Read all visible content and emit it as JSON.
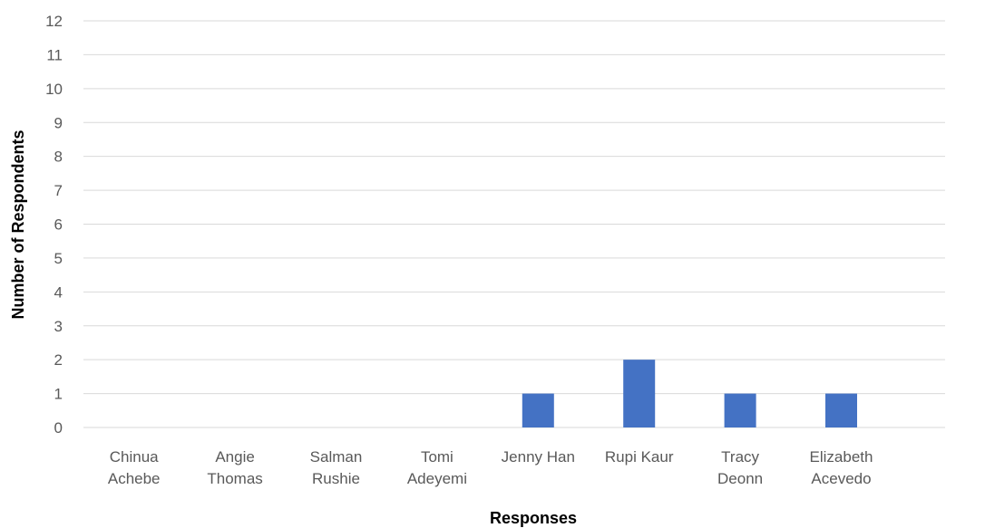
{
  "chart_data": {
    "type": "bar",
    "title": "",
    "xlabel": "Responses",
    "ylabel": "Number of Respondents",
    "categories": [
      [
        "Chinua",
        "Achebe"
      ],
      [
        "Angie",
        "Thomas"
      ],
      [
        "Salman",
        "Rushie"
      ],
      [
        "Tomi",
        "Adeyemi"
      ],
      [
        "Jenny Han"
      ],
      [
        "Rupi Kaur"
      ],
      [
        "Tracy",
        "Deonn"
      ],
      [
        "Elizabeth",
        "Acevedo"
      ]
    ],
    "values": [
      0,
      0,
      0,
      0,
      1,
      2,
      1,
      1
    ],
    "ylim": [
      0,
      12
    ],
    "yticks": [
      0,
      1,
      2,
      3,
      4,
      5,
      6,
      7,
      8,
      9,
      10,
      11,
      12
    ],
    "grid": true,
    "legend": "none",
    "colors": {
      "bar": "#4472C4",
      "grid": "#D9D9D9",
      "tick_text": "#595959"
    }
  }
}
